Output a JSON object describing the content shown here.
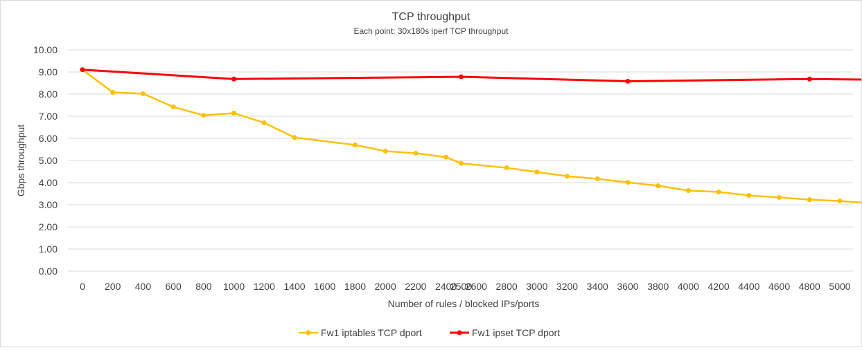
{
  "chart_data": {
    "type": "line",
    "title": "TCP throughput",
    "subtitle": "Each point: 30x180s iperf TCP throughput",
    "xlabel": "Number of rules / blocked IPs/ports",
    "ylabel": "Gbps throughput",
    "categories": [
      "0",
      "200",
      "400",
      "600",
      "800",
      "1000",
      "1200",
      "1400",
      "1600",
      "1800",
      "2000",
      "2200",
      "2400",
      "2500",
      "2600",
      "2800",
      "3000",
      "3200",
      "3400",
      "3600",
      "3800",
      "4000",
      "4200",
      "4400",
      "4600",
      "4800",
      "5000"
    ],
    "x_numeric": [
      0,
      200,
      400,
      600,
      800,
      1000,
      1200,
      1400,
      1600,
      1800,
      2000,
      2200,
      2400,
      2500,
      2600,
      2800,
      3000,
      3200,
      3400,
      3600,
      3800,
      4000,
      4200,
      4400,
      4600,
      4800,
      5000
    ],
    "ylim": [
      0,
      10
    ],
    "y_ticks": [
      "0.00",
      "1.00",
      "2.00",
      "3.00",
      "4.00",
      "5.00",
      "6.00",
      "7.00",
      "8.00",
      "9.00",
      "10.00"
    ],
    "grid": "horizontal",
    "legend_position": "bottom",
    "series": [
      {
        "name": "Fw1 iptables TCP dport",
        "color": "#FFC000",
        "points": [
          [
            0,
            9.1
          ],
          [
            200,
            8.08
          ],
          [
            400,
            8.02
          ],
          [
            600,
            7.42
          ],
          [
            800,
            7.04
          ],
          [
            1000,
            7.14
          ],
          [
            1200,
            6.7
          ],
          [
            1400,
            6.04
          ],
          [
            1800,
            5.7
          ],
          [
            2000,
            5.42
          ],
          [
            2200,
            5.33
          ],
          [
            2400,
            5.15
          ],
          [
            2500,
            4.87
          ],
          [
            2800,
            4.67
          ],
          [
            3000,
            4.48
          ],
          [
            3200,
            4.29
          ],
          [
            3400,
            4.17
          ],
          [
            3600,
            4.01
          ],
          [
            3800,
            3.86
          ],
          [
            4000,
            3.64
          ],
          [
            4200,
            3.58
          ],
          [
            4400,
            3.42
          ],
          [
            4600,
            3.33
          ],
          [
            4800,
            3.23
          ],
          [
            5000,
            3.17
          ],
          [
            5200,
            3.07
          ]
        ]
      },
      {
        "name": "Fw1 ipset TCP dport",
        "color": "#FF0000",
        "points": [
          [
            0,
            9.1
          ],
          [
            1000,
            8.68
          ],
          [
            2500,
            8.78
          ],
          [
            3600,
            8.58
          ],
          [
            4800,
            8.68
          ],
          [
            5200,
            8.65
          ]
        ]
      }
    ]
  }
}
